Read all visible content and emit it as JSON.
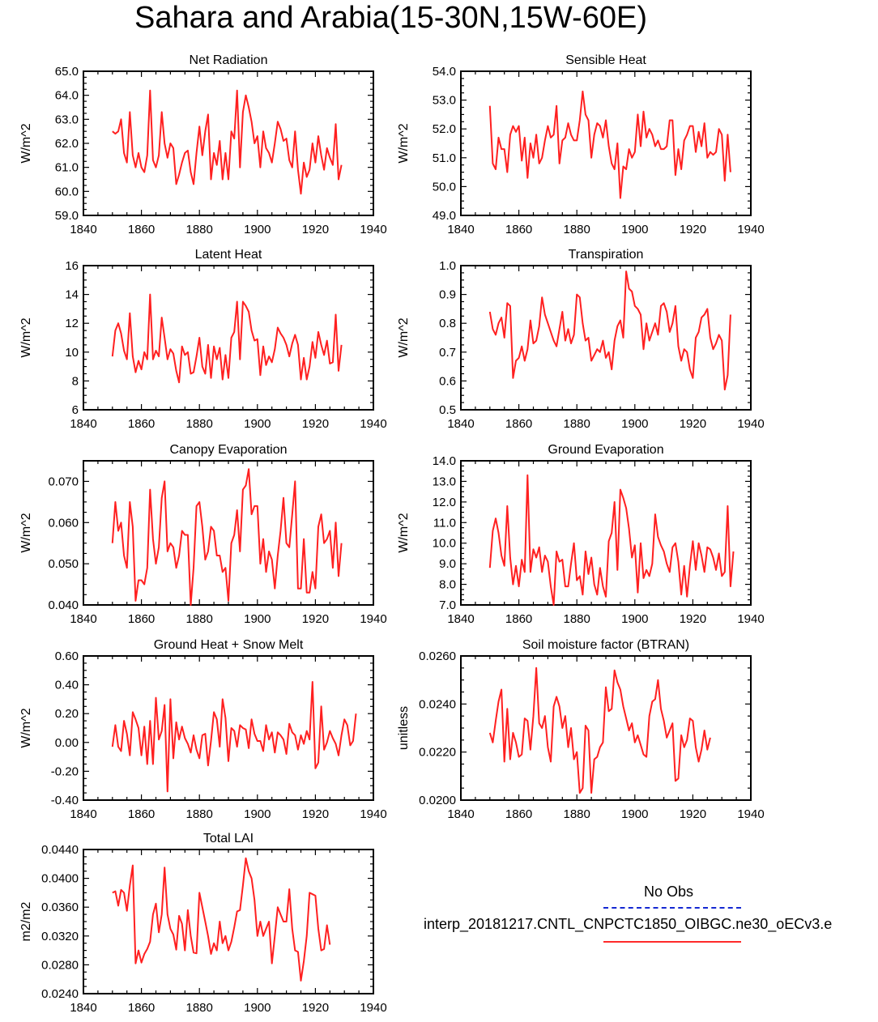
{
  "title": "Sahara and Arabia(15-30N,15W-60E)",
  "colors": {
    "model": "#ff2020",
    "obs": "#1428d2",
    "axis": "#000000"
  },
  "legend": {
    "obs_label": "No Obs",
    "model_label": "interp_20181217.CNTL_CNPCTC1850_OIBGC.ne30_oECv3.e"
  },
  "chart_data": [
    {
      "type": "line",
      "title": "Net Radiation",
      "ylabel": "W/m^2",
      "xlim": [
        1840,
        1940
      ],
      "ylim": [
        59.0,
        65.0
      ],
      "xticks": [
        "1840",
        "1860",
        "1880",
        "1900",
        "1920",
        "1940"
      ],
      "yticks": [
        "59.0",
        "60.0",
        "61.0",
        "62.0",
        "63.0",
        "64.0",
        "65.0"
      ],
      "x_start": 1850,
      "values": [
        62.5,
        62.4,
        62.5,
        63.0,
        61.6,
        61.2,
        63.3,
        61.5,
        61.0,
        61.6,
        61.0,
        60.8,
        61.5,
        64.2,
        61.3,
        61.0,
        61.5,
        63.3,
        62.0,
        61.4,
        62.0,
        61.8,
        60.3,
        60.7,
        61.2,
        61.6,
        61.7,
        60.8,
        60.3,
        61.6,
        62.7,
        61.5,
        62.5,
        63.2,
        60.5,
        61.6,
        61.1,
        62.1,
        60.5,
        61.6,
        60.5,
        62.5,
        62.2,
        64.2,
        61.0,
        63.3,
        64.0,
        63.5,
        62.9,
        62.0,
        62.3,
        61.0,
        62.5,
        61.8,
        61.6,
        61.2,
        62.0,
        62.9,
        62.6,
        62.1,
        62.2,
        61.3,
        61.0,
        62.5,
        60.9,
        59.9,
        61.2,
        60.6,
        60.9,
        62.0,
        61.2,
        62.3,
        61.5,
        60.9,
        61.8,
        61.4,
        61.1,
        62.8,
        60.5,
        61.1
      ]
    },
    {
      "type": "line",
      "title": "Sensible Heat",
      "ylabel": "W/m^2",
      "xlim": [
        1840,
        1940
      ],
      "ylim": [
        49.0,
        54.0
      ],
      "xticks": [
        "1840",
        "1860",
        "1880",
        "1900",
        "1920",
        "1940"
      ],
      "yticks": [
        "49.0",
        "50.0",
        "51.0",
        "52.0",
        "53.0",
        "54.0"
      ],
      "x_start": 1850,
      "values": [
        52.8,
        50.8,
        50.6,
        51.7,
        51.3,
        51.3,
        50.5,
        51.8,
        52.1,
        51.9,
        52.1,
        50.9,
        51.7,
        50.3,
        51.5,
        51.0,
        51.8,
        50.8,
        51.0,
        51.6,
        52.1,
        51.7,
        51.8,
        52.8,
        50.8,
        51.6,
        51.7,
        52.2,
        51.8,
        51.6,
        51.6,
        52.3,
        53.3,
        52.5,
        52.3,
        51.0,
        51.8,
        52.2,
        52.1,
        51.7,
        52.3,
        51.4,
        50.8,
        50.6,
        51.5,
        49.6,
        50.7,
        50.6,
        51.3,
        51.0,
        51.2,
        52.5,
        51.4,
        52.6,
        51.7,
        52.0,
        51.8,
        51.4,
        51.6,
        51.3,
        51.3,
        51.4,
        52.3,
        52.3,
        50.4,
        51.3,
        50.6,
        51.6,
        51.8,
        52.1,
        52.1,
        51.2,
        51.9,
        51.4,
        52.2,
        51.0,
        51.2,
        51.1,
        51.2,
        52.0,
        51.8,
        50.2,
        51.8,
        50.5
      ]
    },
    {
      "type": "line",
      "title": "Latent Heat",
      "ylabel": "W/m^2",
      "xlim": [
        1840,
        1940
      ],
      "ylim": [
        6,
        16
      ],
      "xticks": [
        "1840",
        "1860",
        "1880",
        "1900",
        "1920",
        "1940"
      ],
      "yticks": [
        "6",
        "8",
        "10",
        "12",
        "14",
        "16"
      ],
      "x_start": 1850,
      "values": [
        9.7,
        11.5,
        12.0,
        11.3,
        10.1,
        9.5,
        12.7,
        9.7,
        8.6,
        9.4,
        8.8,
        10.0,
        9.5,
        14.0,
        9.5,
        10.1,
        9.7,
        12.4,
        11.0,
        9.5,
        10.2,
        9.9,
        8.7,
        7.9,
        10.4,
        9.8,
        10.0,
        8.5,
        8.6,
        9.7,
        11.0,
        9.0,
        8.5,
        10.5,
        8.2,
        10.4,
        9.5,
        10.3,
        8.1,
        9.8,
        8.2,
        11.0,
        11.4,
        13.5,
        9.5,
        13.5,
        13.2,
        12.8,
        11.5,
        10.8,
        10.9,
        8.4,
        10.4,
        9.1,
        9.7,
        9.3,
        10.2,
        11.7,
        11.3,
        11.0,
        10.5,
        9.7,
        10.6,
        11.2,
        10.5,
        8.1,
        9.6,
        8.1,
        9.0,
        10.7,
        9.6,
        11.4,
        10.5,
        9.8,
        10.8,
        9.2,
        9.3,
        12.6,
        8.7,
        10.5
      ]
    },
    {
      "type": "line",
      "title": "Transpiration",
      "ylabel": "W/m^2",
      "xlim": [
        1840,
        1940
      ],
      "ylim": [
        0.5,
        1.0
      ],
      "xticks": [
        "1840",
        "1860",
        "1880",
        "1900",
        "1920",
        "1940"
      ],
      "yticks": [
        "0.5",
        "0.6",
        "0.7",
        "0.8",
        "0.9",
        "1.0"
      ],
      "x_start": 1850,
      "values": [
        0.84,
        0.78,
        0.76,
        0.8,
        0.82,
        0.75,
        0.87,
        0.86,
        0.61,
        0.67,
        0.68,
        0.72,
        0.67,
        0.71,
        0.81,
        0.73,
        0.74,
        0.79,
        0.89,
        0.83,
        0.8,
        0.77,
        0.74,
        0.72,
        0.78,
        0.84,
        0.74,
        0.78,
        0.73,
        0.76,
        0.9,
        0.89,
        0.8,
        0.74,
        0.75,
        0.67,
        0.69,
        0.71,
        0.7,
        0.74,
        0.68,
        0.7,
        0.64,
        0.74,
        0.79,
        0.81,
        0.75,
        0.98,
        0.92,
        0.91,
        0.86,
        0.85,
        0.83,
        0.71,
        0.8,
        0.74,
        0.77,
        0.8,
        0.76,
        0.86,
        0.87,
        0.84,
        0.77,
        0.8,
        0.86,
        0.72,
        0.67,
        0.71,
        0.7,
        0.64,
        0.61,
        0.75,
        0.77,
        0.82,
        0.83,
        0.85,
        0.75,
        0.71,
        0.73,
        0.76,
        0.74,
        0.57,
        0.62,
        0.83
      ]
    },
    {
      "type": "line",
      "title": "Canopy Evaporation",
      "ylabel": "W/m^2",
      "xlim": [
        1840,
        1940
      ],
      "ylim": [
        0.04,
        0.075
      ],
      "xticks": [
        "1840",
        "1860",
        "1880",
        "1900",
        "1920",
        "1940"
      ],
      "yticks": [
        "0.040",
        "0.050",
        "0.060",
        "0.070"
      ],
      "x_start": 1850,
      "values": [
        0.055,
        0.065,
        0.058,
        0.06,
        0.052,
        0.049,
        0.065,
        0.059,
        0.041,
        0.046,
        0.046,
        0.045,
        0.049,
        0.068,
        0.056,
        0.05,
        0.054,
        0.066,
        0.07,
        0.053,
        0.055,
        0.054,
        0.049,
        0.052,
        0.058,
        0.057,
        0.057,
        0.04,
        0.049,
        0.064,
        0.065,
        0.059,
        0.051,
        0.053,
        0.059,
        0.058,
        0.052,
        0.052,
        0.048,
        0.049,
        0.041,
        0.055,
        0.057,
        0.063,
        0.053,
        0.068,
        0.069,
        0.073,
        0.062,
        0.064,
        0.064,
        0.05,
        0.056,
        0.048,
        0.053,
        0.051,
        0.044,
        0.052,
        0.058,
        0.066,
        0.055,
        0.054,
        0.062,
        0.07,
        0.044,
        0.044,
        0.056,
        0.043,
        0.043,
        0.048,
        0.044,
        0.059,
        0.062,
        0.055,
        0.056,
        0.058,
        0.049,
        0.06,
        0.047,
        0.055
      ]
    },
    {
      "type": "line",
      "title": "Ground Evaporation",
      "ylabel": "W/m^2",
      "xlim": [
        1840,
        1940
      ],
      "ylim": [
        7.0,
        14.0
      ],
      "xticks": [
        "1840",
        "1860",
        "1880",
        "1900",
        "1920",
        "1940"
      ],
      "yticks": [
        "7.0",
        "8.0",
        "9.0",
        "10.0",
        "11.0",
        "12.0",
        "13.0",
        "14.0"
      ],
      "x_start": 1850,
      "values": [
        8.8,
        10.6,
        11.2,
        10.5,
        9.4,
        8.9,
        11.8,
        9.3,
        8.0,
        8.9,
        7.9,
        9.2,
        8.6,
        13.3,
        8.6,
        9.7,
        9.3,
        9.8,
        8.6,
        9.4,
        9.1,
        7.9,
        7.0,
        9.6,
        9.1,
        9.2,
        7.9,
        7.9,
        9.0,
        10.0,
        8.2,
        8.4,
        7.5,
        9.6,
        8.5,
        9.3,
        8.0,
        7.5,
        8.8,
        7.9,
        7.4,
        10.1,
        10.5,
        12.0,
        8.7,
        12.6,
        12.2,
        11.7,
        10.7,
        9.3,
        9.9,
        7.6,
        10.0,
        8.3,
        8.7,
        8.4,
        9.0,
        11.4,
        10.3,
        9.9,
        9.6,
        9.0,
        8.6,
        9.8,
        10.0,
        9.1,
        7.5,
        8.9,
        7.4,
        8.9,
        10.1,
        8.7,
        10.0,
        9.4,
        8.6,
        9.8,
        9.7,
        9.3,
        8.7,
        9.5,
        8.4,
        8.6,
        11.8,
        7.9,
        9.6
      ]
    },
    {
      "type": "line",
      "title": "Ground Heat + Snow Melt",
      "ylabel": "W/m^2",
      "xlim": [
        1840,
        1940
      ],
      "ylim": [
        -0.4,
        0.6
      ],
      "xticks": [
        "1840",
        "1860",
        "1880",
        "1900",
        "1920",
        "1940"
      ],
      "yticks": [
        "-0.40",
        "-0.20",
        "0.00",
        "0.20",
        "0.40",
        "0.60"
      ],
      "x_start": 1850,
      "values": [
        -0.03,
        0.12,
        -0.03,
        -0.06,
        0.15,
        0.06,
        -0.09,
        0.21,
        0.16,
        0.1,
        -0.09,
        0.11,
        -0.15,
        0.15,
        -0.15,
        0.31,
        0.02,
        0.08,
        0.26,
        -0.34,
        0.3,
        -0.11,
        0.14,
        0.02,
        0.11,
        0.03,
        -0.01,
        -0.07,
        0.05,
        -0.05,
        -0.11,
        0.05,
        0.06,
        -0.16,
        0.01,
        0.21,
        0.16,
        -0.03,
        0.3,
        0.17,
        -0.13,
        0.1,
        0.08,
        -0.03,
        0.12,
        0.1,
        0.09,
        -0.04,
        0.16,
        0.06,
        0.01,
        0.01,
        -0.06,
        0.12,
        0.02,
        0.07,
        -0.07,
        0.07,
        0.05,
        0.02,
        -0.08,
        0.13,
        0.07,
        0.05,
        -0.05,
        0.05,
        -0.01,
        0.08,
        0.02,
        0.42,
        -0.18,
        -0.14,
        0.25,
        -0.05,
        0.0,
        0.08,
        0.03,
        -0.01,
        -0.09,
        0.05,
        0.16,
        0.12,
        -0.02,
        0.01,
        0.2
      ]
    },
    {
      "type": "line",
      "title": "Soil moisture factor (BTRAN)",
      "ylabel": "unitless",
      "xlim": [
        1840,
        1940
      ],
      "ylim": [
        0.02,
        0.026
      ],
      "xticks": [
        "1840",
        "1860",
        "1880",
        "1900",
        "1920",
        "1940"
      ],
      "yticks": [
        "0.0200",
        "0.0220",
        "0.0240",
        "0.0260"
      ],
      "x_start": 1850,
      "values": [
        0.0228,
        0.0224,
        0.0233,
        0.0241,
        0.0246,
        0.0216,
        0.0238,
        0.0217,
        0.0228,
        0.0224,
        0.0218,
        0.0219,
        0.0234,
        0.0233,
        0.0221,
        0.0235,
        0.0255,
        0.0232,
        0.023,
        0.0235,
        0.0222,
        0.0216,
        0.0239,
        0.0243,
        0.0239,
        0.023,
        0.0235,
        0.0222,
        0.023,
        0.0217,
        0.022,
        0.0203,
        0.0205,
        0.0231,
        0.0229,
        0.0203,
        0.0217,
        0.0218,
        0.0222,
        0.0224,
        0.0247,
        0.0237,
        0.0238,
        0.0254,
        0.0249,
        0.0246,
        0.0239,
        0.0234,
        0.0229,
        0.0232,
        0.0224,
        0.0227,
        0.0223,
        0.0219,
        0.0218,
        0.0235,
        0.0241,
        0.0242,
        0.025,
        0.0238,
        0.0233,
        0.0226,
        0.0229,
        0.0232,
        0.0208,
        0.0209,
        0.0227,
        0.0222,
        0.0225,
        0.0234,
        0.0233,
        0.0222,
        0.0216,
        0.0221,
        0.0229,
        0.0221,
        0.0226
      ]
    },
    {
      "type": "line",
      "title": "Total LAI",
      "ylabel": "m2/m2",
      "xlim": [
        1840,
        1940
      ],
      "ylim": [
        0.024,
        0.044
      ],
      "xticks": [
        "1840",
        "1860",
        "1880",
        "1900",
        "1920",
        "1940"
      ],
      "yticks": [
        "0.0240",
        "0.0280",
        "0.0320",
        "0.0360",
        "0.0400",
        "0.0440"
      ],
      "x_start": 1850,
      "values": [
        0.038,
        0.0382,
        0.0362,
        0.0384,
        0.038,
        0.0355,
        0.039,
        0.0418,
        0.0282,
        0.03,
        0.0283,
        0.0295,
        0.0302,
        0.0312,
        0.035,
        0.0365,
        0.0325,
        0.035,
        0.0415,
        0.035,
        0.033,
        0.0322,
        0.0301,
        0.0348,
        0.0337,
        0.03,
        0.0356,
        0.032,
        0.0297,
        0.0296,
        0.038,
        0.036,
        0.034,
        0.032,
        0.0295,
        0.031,
        0.03,
        0.034,
        0.031,
        0.032,
        0.03,
        0.0312,
        0.0332,
        0.0354,
        0.0356,
        0.039,
        0.0428,
        0.041,
        0.04,
        0.037,
        0.032,
        0.034,
        0.032,
        0.033,
        0.034,
        0.0282,
        0.032,
        0.036,
        0.035,
        0.034,
        0.034,
        0.0385,
        0.033,
        0.03,
        0.0298,
        0.0258,
        0.0285,
        0.032,
        0.038,
        0.0378,
        0.0376,
        0.033,
        0.03,
        0.0302,
        0.0335,
        0.0308
      ]
    }
  ]
}
